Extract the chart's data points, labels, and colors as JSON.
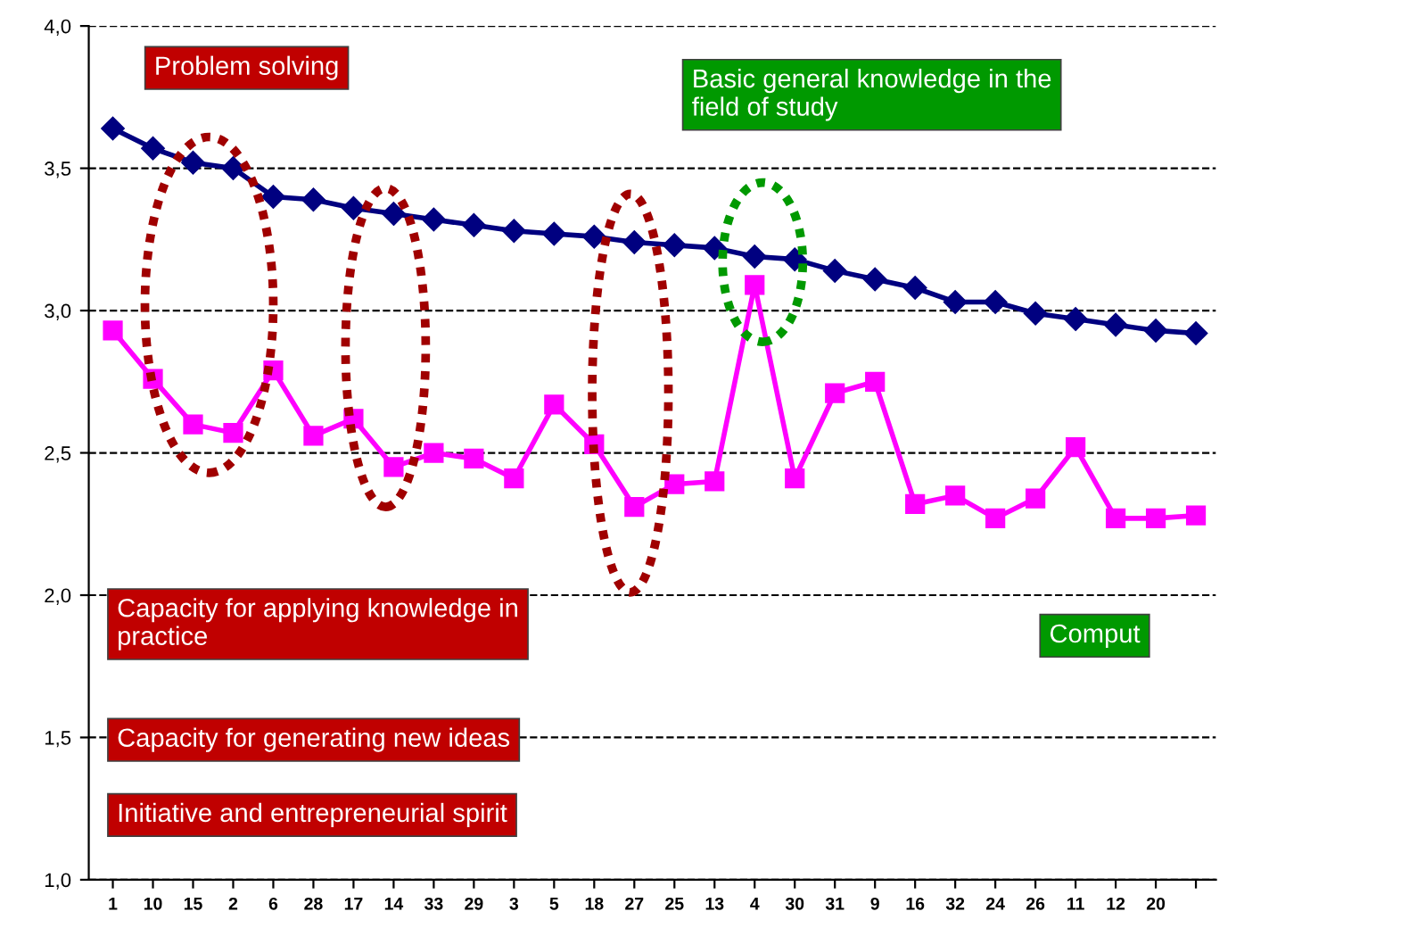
{
  "chart_data": {
    "type": "line",
    "categories": [
      "1",
      "10",
      "15",
      "2",
      "6",
      "28",
      "17",
      "14",
      "33",
      "29",
      "3",
      "5",
      "18",
      "27",
      "25",
      "13",
      "4",
      "30",
      "31",
      "9",
      "16",
      "32",
      "24",
      "26",
      "11",
      "12",
      "20",
      null
    ],
    "series": [
      {
        "color": "#000080",
        "marker": "diamond",
        "values": [
          3.64,
          3.57,
          3.52,
          3.5,
          3.4,
          3.39,
          3.36,
          3.34,
          3.32,
          3.3,
          3.28,
          3.27,
          3.26,
          3.24,
          3.23,
          3.22,
          3.19,
          3.18,
          3.14,
          3.11,
          3.08,
          3.03,
          3.03,
          2.99,
          2.97,
          2.95,
          2.93,
          2.92
        ]
      },
      {
        "color": "#ff00ff",
        "marker": "square",
        "values": [
          2.93,
          2.76,
          2.6,
          2.57,
          2.79,
          2.56,
          2.62,
          2.45,
          2.5,
          2.48,
          2.41,
          2.67,
          2.53,
          2.31,
          2.39,
          2.4,
          3.09,
          2.41,
          2.71,
          2.75,
          2.32,
          2.35,
          2.27,
          2.34,
          2.52,
          2.27,
          2.27,
          2.28
        ]
      }
    ],
    "ylim": [
      1.0,
      4.0
    ],
    "yticks": [
      {
        "value": 1.0,
        "label": "1,0"
      },
      {
        "value": 1.5,
        "label": "1,5"
      },
      {
        "value": 2.0,
        "label": "2,0"
      },
      {
        "value": 2.5,
        "label": "2,5"
      },
      {
        "value": 3.0,
        "label": "3,0"
      },
      {
        "value": 3.5,
        "label": "3,5"
      },
      {
        "value": 4.0,
        "label": "4,0"
      }
    ],
    "grid": "y",
    "line_style": "solid",
    "annotations": [
      "Problem solving",
      "Basic general knowledge in the\nfield of study",
      "Capacity for applying knowledge in\npractice",
      "Capacity for generating new ideas",
      "Initiative and entrepreneurial spirit",
      "Comput"
    ]
  }
}
